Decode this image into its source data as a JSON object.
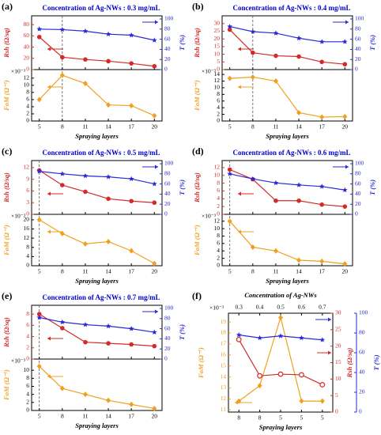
{
  "chart_data": [
    {
      "type": "line",
      "label": "(a)",
      "title": "Concentration of Ag-NWs : 0.3 mg/mL",
      "xlabel": "Spraying layers",
      "x": [
        5,
        8,
        11,
        14,
        17,
        20
      ],
      "xlim": [
        4,
        21
      ],
      "xticks": [
        5,
        8,
        11,
        14,
        17,
        20
      ],
      "vline": 8,
      "upper": {
        "ylabel": "Rsh (Ω/sq)",
        "ylim": [
          0,
          90
        ],
        "yticks": [
          0,
          20,
          40,
          60,
          80
        ],
        "y2label": "T (%)",
        "y2lim": [
          0,
          100
        ],
        "y2ticks": [
          0,
          20,
          40,
          60,
          80,
          100
        ],
        "series": [
          {
            "color": "#d42a2a",
            "marker": "circle",
            "axis": "y",
            "values": [
              58,
              22,
              18,
              15,
              11,
              6
            ]
          },
          {
            "color": "#2a2ad4",
            "marker": "star",
            "axis": "y2",
            "values": [
              80,
              79,
              76,
              70,
              68,
              58
            ]
          }
        ]
      },
      "lower": {
        "ylabel": "FoM (Ω⁻¹)",
        "multiplier": "×10⁻³",
        "ylim": [
          0,
          13.5
        ],
        "yticks": [
          0,
          2,
          4,
          6,
          8,
          10,
          12
        ],
        "series": [
          {
            "color": "#f0a020",
            "marker": "diamond",
            "axis": "y",
            "values": [
              6,
              12.8,
              10.5,
              4.5,
              4.3,
              1.5
            ]
          }
        ]
      }
    },
    {
      "type": "line",
      "label": "(b)",
      "title": "Concentration of Ag-NWs : 0.4 mg/mL",
      "xlabel": "Spraying layers",
      "x": [
        5,
        8,
        11,
        14,
        17,
        20
      ],
      "xlim": [
        4,
        21
      ],
      "xticks": [
        5,
        8,
        11,
        14,
        17,
        20
      ],
      "vline": 8,
      "upper": {
        "ylabel": "Rsh (Ω/sq)",
        "ylim": [
          0,
          33
        ],
        "yticks": [
          0,
          5,
          10,
          15,
          20,
          25,
          30
        ],
        "y2label": "T (%)",
        "y2lim": [
          0,
          100
        ],
        "y2ticks": [
          0,
          20,
          40,
          60,
          80,
          100
        ],
        "series": [
          {
            "color": "#d42a2a",
            "marker": "circle",
            "axis": "y",
            "values": [
              26,
              11,
              9,
              8.5,
              5,
              3.5
            ]
          },
          {
            "color": "#2a2ad4",
            "marker": "star",
            "axis": "y2",
            "values": [
              85,
              75,
              72,
              62,
              55,
              55
            ]
          }
        ]
      },
      "lower": {
        "ylabel": "FoM (Ω⁻¹)",
        "multiplier": "×10⁻³",
        "ylim": [
          0,
          14.5
        ],
        "yticks": [
          0,
          2,
          4,
          6,
          8,
          10,
          12,
          14
        ],
        "series": [
          {
            "color": "#f0a020",
            "marker": "diamond",
            "axis": "y",
            "values": [
              12.8,
              13.2,
              12,
              2.5,
              1.2,
              1.3
            ]
          }
        ]
      }
    },
    {
      "type": "line",
      "label": "(c)",
      "title": "Concentration of Ag-NWs : 0.5 mg/mL",
      "xlabel": "Spraying layers",
      "x": [
        5,
        8,
        11,
        14,
        17,
        20
      ],
      "xlim": [
        4,
        21
      ],
      "xticks": [
        5,
        8,
        11,
        14,
        17,
        20
      ],
      "vline": 5,
      "upper": {
        "ylabel": "Rsh (Ω/sq)",
        "ylim": [
          0,
          13
        ],
        "yticks": [
          0,
          3,
          6,
          9,
          12
        ],
        "y2label": "T (%)",
        "y2lim": [
          0,
          100
        ],
        "y2ticks": [
          0,
          20,
          40,
          60,
          80,
          100
        ],
        "series": [
          {
            "color": "#d42a2a",
            "marker": "circle",
            "axis": "y",
            "values": [
              11.3,
              7.5,
              5.8,
              4,
              3.4,
              3
            ]
          },
          {
            "color": "#2a2ad4",
            "marker": "star",
            "axis": "y2",
            "values": [
              85,
              80,
              76,
              74,
              70,
              60
            ]
          }
        ]
      },
      "lower": {
        "ylabel": "FoM (Ω⁻¹)",
        "multiplier": "×10⁻³",
        "ylim": [
          0,
          21
        ],
        "yticks": [
          0,
          4,
          8,
          12,
          16,
          20
        ],
        "series": [
          {
            "color": "#f0a020",
            "marker": "diamond",
            "axis": "y",
            "values": [
              20,
              14,
              9.5,
              10.5,
              6.5,
              1
            ]
          }
        ]
      }
    },
    {
      "type": "line",
      "label": "(d)",
      "title": "Concentration of Ag-NWs : 0.6 mg/mL",
      "xlabel": "Spraying layers",
      "x": [
        5,
        8,
        11,
        14,
        17,
        20
      ],
      "xlim": [
        4,
        21
      ],
      "xticks": [
        5,
        8,
        11,
        14,
        17,
        20
      ],
      "vline": 5,
      "upper": {
        "ylabel": "Rsh (Ω/sq)",
        "ylim": [
          0,
          13
        ],
        "yticks": [
          0,
          2,
          4,
          6,
          8,
          10,
          12
        ],
        "y2label": "T (%)",
        "y2lim": [
          0,
          100
        ],
        "y2ticks": [
          0,
          20,
          40,
          60,
          80,
          100
        ],
        "series": [
          {
            "color": "#d42a2a",
            "marker": "circle",
            "axis": "y",
            "values": [
              11.5,
              9,
              3.5,
              3.5,
              2.5,
              2
            ]
          },
          {
            "color": "#2a2ad4",
            "marker": "star",
            "axis": "y2",
            "values": [
              80,
              70,
              62,
              58,
              55,
              48
            ]
          }
        ]
      },
      "lower": {
        "ylabel": "FoM (Ω⁻¹)",
        "multiplier": "×10⁻³",
        "ylim": [
          0,
          13
        ],
        "yticks": [
          0,
          2,
          4,
          6,
          8,
          10,
          12
        ],
        "series": [
          {
            "color": "#f0a020",
            "marker": "diamond",
            "axis": "y",
            "values": [
              12,
              5,
              4,
              1.5,
              1.2,
              0.5
            ]
          }
        ]
      }
    },
    {
      "type": "line",
      "label": "(e)",
      "title": "Concentration of Ag-NWs : 0.7 mg/mL",
      "xlabel": "Spraying layers",
      "x": [
        5,
        8,
        11,
        14,
        17,
        20
      ],
      "xlim": [
        4,
        21
      ],
      "xticks": [
        5,
        8,
        11,
        14,
        17,
        20
      ],
      "vline": 5,
      "upper": {
        "ylabel": "Rsh (Ω/sq)",
        "ylim": [
          0,
          9
        ],
        "yticks": [
          0,
          2,
          4,
          6,
          8
        ],
        "y2label": "T (%)",
        "y2lim": [
          0,
          100
        ],
        "y2ticks": [
          0,
          20,
          40,
          60,
          80,
          100
        ],
        "series": [
          {
            "color": "#d42a2a",
            "marker": "circle",
            "axis": "y",
            "values": [
              8,
              5.5,
              3,
              2.8,
              2.6,
              2.3
            ]
          },
          {
            "color": "#2a2ad4",
            "marker": "star",
            "axis": "y2",
            "values": [
              82,
              73,
              68,
              65,
              60,
              53
            ]
          }
        ]
      },
      "lower": {
        "ylabel": "FoM (Ω⁻¹)",
        "multiplier": "×10⁻³",
        "ylim": [
          0,
          12
        ],
        "yticks": [
          0,
          2,
          4,
          6,
          8,
          10
        ],
        "series": [
          {
            "color": "#f0a020",
            "marker": "diamond",
            "axis": "y",
            "values": [
              11,
              5.5,
              4,
              2.5,
              1.5,
              0.5
            ]
          }
        ]
      }
    },
    {
      "type": "line",
      "label": "(f)",
      "x2label": "Concentration of Ag-NWs",
      "xlabel": "Spraying layers",
      "categories": [
        "8",
        "8",
        "5",
        "5",
        "5"
      ],
      "x2lim": [
        0.25,
        0.75
      ],
      "x2ticks": [
        0.3,
        0.4,
        0.5,
        0.6,
        0.7
      ],
      "ylabel": "FoM (Ω⁻¹)",
      "multiplier": "×10⁻³",
      "ylim": [
        10.8,
        19.8
      ],
      "yticks": [
        11,
        12,
        13,
        14,
        15,
        16,
        17,
        18,
        19
      ],
      "y2label": "Rsh (Ω/sq)",
      "y2lim": [
        0,
        30
      ],
      "y2ticks": [
        0,
        5,
        10,
        15,
        20,
        25,
        30
      ],
      "y3label": "T (%)",
      "y3lim": [
        0,
        100
      ],
      "y3ticks": [
        0,
        20,
        40,
        60,
        80,
        100
      ],
      "series": [
        {
          "color": "#f0a020",
          "marker": "diamond",
          "axis": "y",
          "values": [
            11.8,
            13.2,
            19.4,
            11.8,
            11.8
          ]
        },
        {
          "color": "#d42a2a",
          "marker": "circle-open",
          "axis": "y2",
          "values": [
            22,
            11,
            11.5,
            11.3,
            8.3
          ]
        },
        {
          "color": "#2a2ad4",
          "marker": "star",
          "axis": "y3",
          "values": [
            78,
            75,
            77,
            75,
            73
          ]
        }
      ]
    }
  ]
}
